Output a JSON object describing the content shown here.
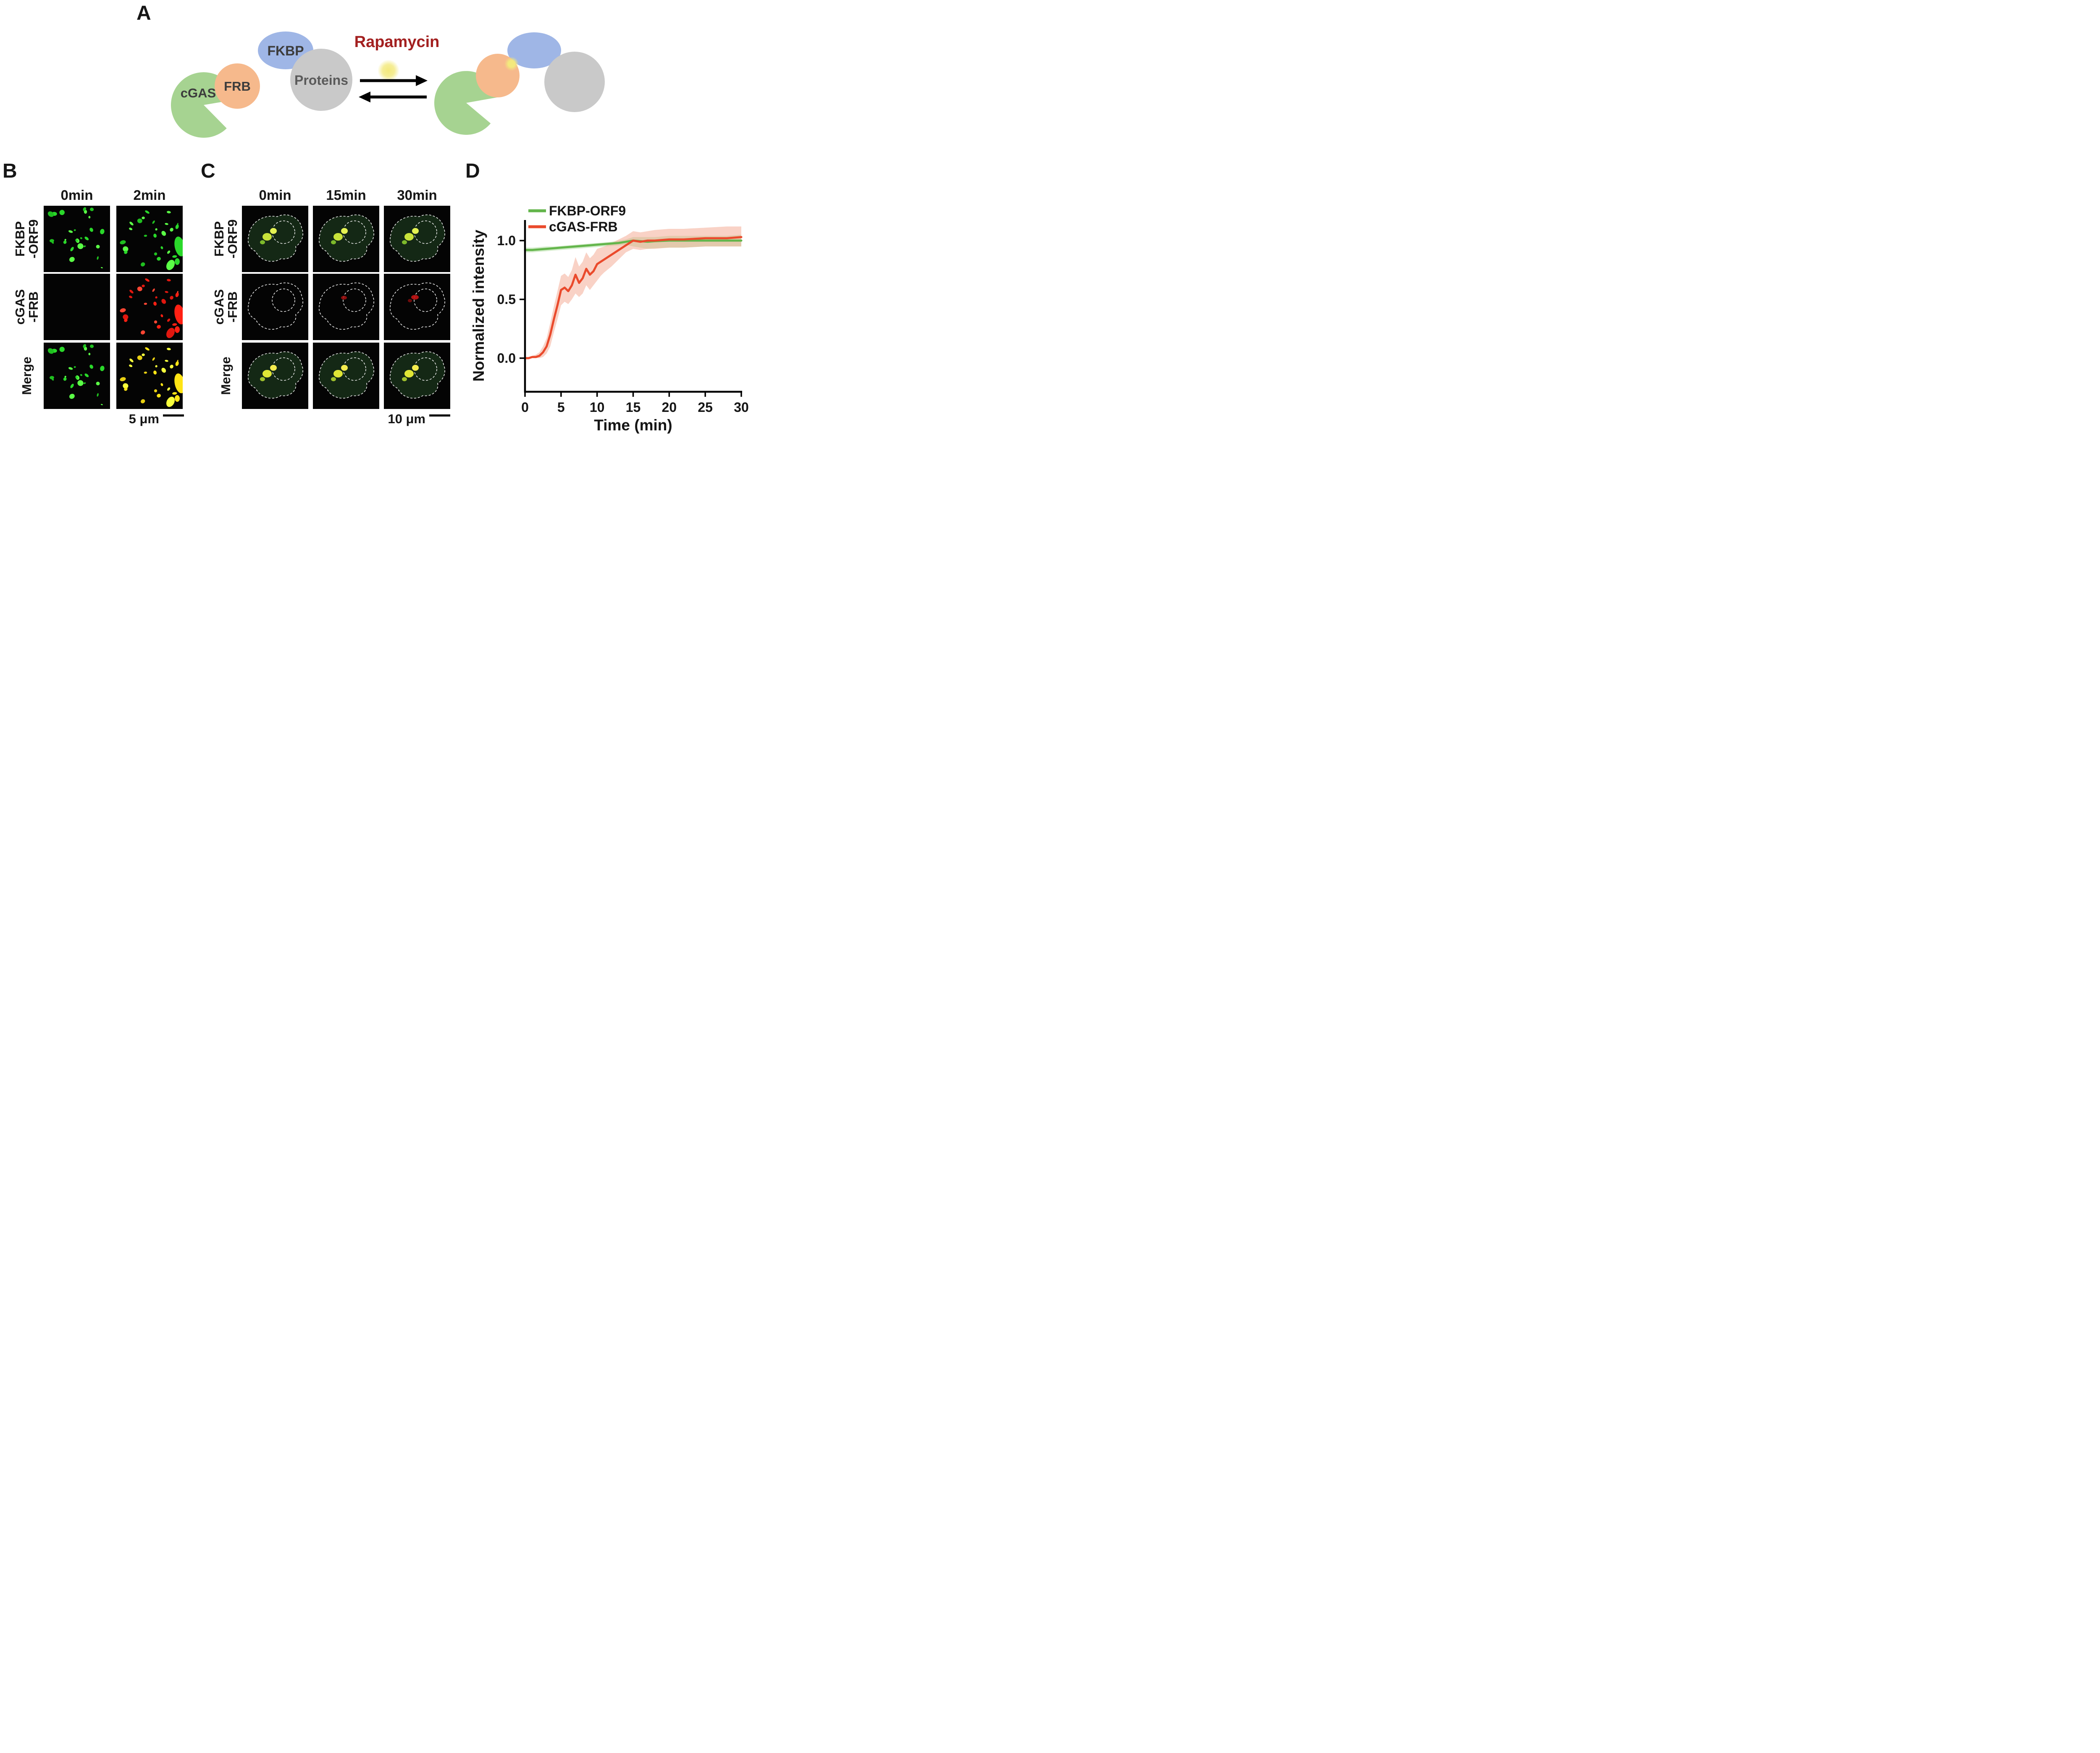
{
  "panels": {
    "A": {
      "label": "A",
      "shapes": {
        "fkbp_label": "FKBP",
        "frb_label": "FRB",
        "cgas_label": "cGAS",
        "proteins_label": "Proteins",
        "rapamycin_label": "Rapamycin"
      },
      "colors": {
        "fkbp": "#9fb6e6",
        "frb": "#f6b98c",
        "cgas": "#a6d391",
        "proteins": "#c9c9c9",
        "rapamycin_text": "#a32020",
        "rapamycin_dot": "#f3e97c",
        "label_text": "#3c3c3c",
        "arrow": "#000000"
      }
    },
    "B": {
      "label": "B",
      "col_headers": [
        "0min",
        "2min"
      ],
      "row_labels": [
        [
          "FKBP",
          "-ORF9"
        ],
        [
          "cGAS",
          "-FRB"
        ],
        [
          "Merge"
        ]
      ],
      "scale_bar_label": "5 μm",
      "cells": [
        [
          {
            "style": "puncta",
            "seed": 11,
            "color": "green",
            "count": 26
          },
          {
            "style": "puncta",
            "seed": 21,
            "color": "green",
            "count": 26,
            "big": true
          }
        ],
        [
          {
            "style": "empty"
          },
          {
            "style": "puncta",
            "seed": 21,
            "color": "red",
            "count": 26,
            "big": true
          }
        ],
        [
          {
            "style": "puncta",
            "seed": 11,
            "color": "green",
            "count": 26
          },
          {
            "style": "puncta",
            "seed": 21,
            "color": "yellow",
            "count": 26,
            "big": true
          }
        ]
      ]
    },
    "C": {
      "label": "C",
      "col_headers": [
        "0min",
        "15min",
        "30min"
      ],
      "row_labels": [
        [
          "FKBP",
          "-ORF9"
        ],
        [
          "cGAS",
          "-FRB"
        ],
        [
          "Merge"
        ]
      ],
      "scale_bar_label": "10 μm",
      "cells": [
        [
          {
            "tint": true,
            "blobs": "green"
          },
          {
            "tint": true,
            "blobs": "green"
          },
          {
            "tint": true,
            "blobs": "green"
          }
        ],
        [
          {
            "tint": false,
            "blobs": "none"
          },
          {
            "tint": false,
            "blobs": "red_small"
          },
          {
            "tint": false,
            "blobs": "red"
          }
        ],
        [
          {
            "tint": true,
            "blobs": "merge"
          },
          {
            "tint": true,
            "blobs": "merge"
          },
          {
            "tint": true,
            "blobs": "merge"
          }
        ]
      ]
    },
    "D": {
      "label": "D"
    }
  },
  "microscopy": {
    "background": "#040404",
    "outline_color": "#eaeaea",
    "tint_color": "rgba(44,96,48,0.40)",
    "palettes": {
      "green": [
        "#2ad82a",
        "#5bff46",
        "#1fbf1f"
      ],
      "red": [
        "#ff2013",
        "#e0170f",
        "#ff4633"
      ],
      "yellow": [
        "#ffe414",
        "#f7ff3c",
        "#e8cf12"
      ]
    }
  },
  "chart_data": {
    "type": "line",
    "title": "",
    "xlabel": "Time (min)",
    "ylabel": "Normalized intensity",
    "xlim": [
      0,
      30
    ],
    "ylim": [
      -0.28,
      1.18
    ],
    "grid": false,
    "legend_position": "top-left",
    "xticks": {
      "values": [
        0,
        5,
        10,
        15,
        20,
        25,
        30
      ],
      "labels": [
        "0",
        "5",
        "10",
        "15",
        "20",
        "25",
        "30"
      ]
    },
    "yticks": {
      "values": [
        0,
        0.5,
        1
      ],
      "labels": [
        "0.0",
        "0.5",
        "1.0"
      ]
    },
    "series": [
      {
        "name": "FKBP-ORF9",
        "color": "#63b54b",
        "band_color": "#9ed489",
        "band_opacity": 0.45,
        "x": [
          0,
          1,
          2,
          3,
          4,
          5,
          6,
          7,
          8,
          9,
          10,
          11,
          12,
          13,
          14,
          15,
          16,
          17,
          18,
          20,
          22,
          25,
          28,
          30
        ],
        "y": [
          0.92,
          0.92,
          0.925,
          0.93,
          0.935,
          0.94,
          0.945,
          0.95,
          0.955,
          0.96,
          0.965,
          0.97,
          0.975,
          0.98,
          0.99,
          1.0,
          0.995,
          0.99,
          0.995,
          1.0,
          1.0,
          1.0,
          1.0,
          1.0
        ],
        "band_lower": [
          0.9,
          0.9,
          0.905,
          0.91,
          0.915,
          0.92,
          0.925,
          0.93,
          0.935,
          0.94,
          0.945,
          0.95,
          0.955,
          0.96,
          0.965,
          0.95,
          0.94,
          0.93,
          0.935,
          0.94,
          0.94,
          0.95,
          0.95,
          0.95
        ],
        "band_upper": [
          0.94,
          0.94,
          0.945,
          0.95,
          0.95,
          0.955,
          0.96,
          0.965,
          0.97,
          0.975,
          0.98,
          0.985,
          0.99,
          1.0,
          1.01,
          1.03,
          1.03,
          1.03,
          1.03,
          1.04,
          1.04,
          1.04,
          1.04,
          1.05
        ]
      },
      {
        "name": "cGAS-FRB",
        "color": "#ea4a2c",
        "band_color": "#f4a58d",
        "band_opacity": 0.5,
        "x": [
          0,
          0.5,
          1,
          1.5,
          2,
          2.5,
          3,
          3.5,
          4,
          4.5,
          5,
          5.5,
          6,
          6.5,
          7,
          7.5,
          8,
          8.5,
          9,
          9.5,
          10,
          10.5,
          11,
          12,
          13,
          14,
          15,
          16,
          17,
          18,
          20,
          22,
          25,
          28,
          30
        ],
        "y": [
          0.0,
          0.0,
          0.01,
          0.01,
          0.02,
          0.05,
          0.1,
          0.2,
          0.33,
          0.45,
          0.58,
          0.6,
          0.57,
          0.62,
          0.71,
          0.64,
          0.68,
          0.76,
          0.71,
          0.74,
          0.8,
          0.82,
          0.84,
          0.88,
          0.92,
          0.96,
          1.0,
          0.99,
          1.0,
          1.0,
          1.01,
          1.01,
          1.02,
          1.02,
          1.03
        ],
        "band_lower": [
          0.0,
          0.0,
          0.0,
          0.0,
          0.0,
          0.01,
          0.04,
          0.1,
          0.22,
          0.33,
          0.45,
          0.48,
          0.46,
          0.5,
          0.55,
          0.52,
          0.55,
          0.62,
          0.58,
          0.62,
          0.66,
          0.7,
          0.73,
          0.78,
          0.84,
          0.9,
          0.93,
          0.92,
          0.93,
          0.93,
          0.94,
          0.94,
          0.95,
          0.95,
          0.95
        ],
        "band_upper": [
          0.01,
          0.01,
          0.02,
          0.03,
          0.05,
          0.1,
          0.17,
          0.3,
          0.44,
          0.57,
          0.7,
          0.72,
          0.69,
          0.75,
          0.86,
          0.78,
          0.82,
          0.9,
          0.85,
          0.88,
          0.93,
          0.94,
          0.95,
          0.98,
          1.01,
          1.04,
          1.08,
          1.07,
          1.08,
          1.09,
          1.1,
          1.1,
          1.11,
          1.12,
          1.12
        ]
      }
    ]
  }
}
